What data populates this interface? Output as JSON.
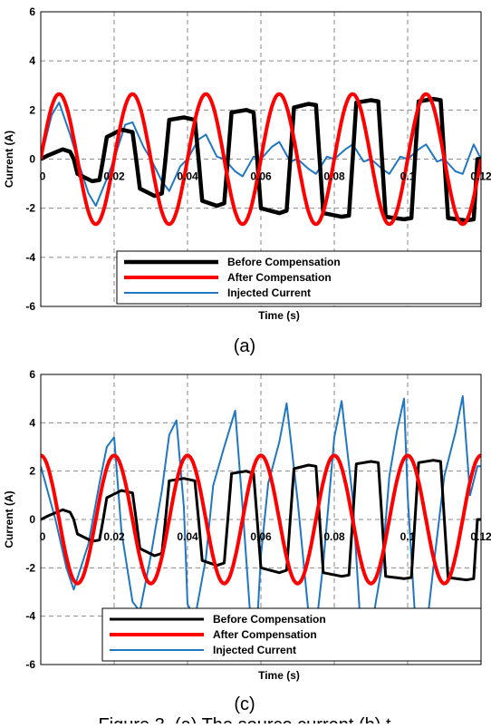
{
  "caption": "Figure 3. (a) The source current (b) t",
  "charts": [
    {
      "sublabel": "(a)",
      "xlabel": "Time (s)",
      "ylabel": "Current (A)"
    },
    {
      "sublabel": "(c)",
      "xlabel": "Time (s)",
      "ylabel": "Current (A)"
    }
  ],
  "chart_data": [
    {
      "type": "line",
      "xlabel": "Time (s)",
      "ylabel": "Current (A)",
      "xlim": [
        0,
        0.12
      ],
      "ylim": [
        -6,
        6
      ],
      "xticks": [
        0,
        0.02,
        0.04,
        0.06,
        0.08,
        0.1,
        0.12
      ],
      "xtick_labels": [
        "0",
        "0.02",
        "0.04",
        "0.06",
        "0.08",
        "0.1",
        "0.12"
      ],
      "yticks": [
        -6,
        -4,
        -2,
        0,
        2,
        4,
        6
      ],
      "ytick_labels": [
        "-6",
        "-4",
        "-2",
        "0",
        "2",
        "4",
        "6"
      ],
      "grid": true,
      "legend_position": "bottom-right",
      "series": [
        {
          "name": "Before Compensation",
          "color": "#000000",
          "x": [
            0,
            0.002,
            0.006,
            0.008,
            0.009,
            0.01,
            0.014,
            0.016,
            0.017,
            0.018,
            0.022,
            0.025,
            0.026,
            0.027,
            0.031,
            0.033,
            0.034,
            0.035,
            0.039,
            0.042,
            0.043,
            0.044,
            0.048,
            0.05,
            0.051,
            0.052,
            0.056,
            0.058,
            0.059,
            0.06,
            0.065,
            0.067,
            0.068,
            0.069,
            0.073,
            0.075,
            0.076,
            0.077,
            0.082,
            0.084,
            0.085,
            0.086,
            0.09,
            0.092,
            0.093,
            0.094,
            0.099,
            0.101,
            0.102,
            0.103,
            0.107,
            0.109,
            0.11,
            0.111,
            0.116,
            0.118,
            0.119,
            0.12
          ],
          "y": [
            0,
            0.15,
            0.4,
            0.3,
            0,
            -0.6,
            -0.9,
            -0.85,
            0,
            0.9,
            1.2,
            1.1,
            0,
            -1.2,
            -1.5,
            -1.4,
            0,
            1.6,
            1.7,
            1.6,
            0,
            -1.7,
            -1.9,
            -1.8,
            0,
            1.9,
            2.0,
            1.9,
            0,
            -2.0,
            -2.2,
            -2.1,
            0,
            2.1,
            2.25,
            2.2,
            0,
            -2.2,
            -2.35,
            -2.3,
            0,
            2.3,
            2.4,
            2.35,
            0,
            -2.35,
            -2.45,
            -2.4,
            0,
            2.35,
            2.45,
            2.4,
            0,
            -2.4,
            -2.5,
            -2.45,
            0,
            0
          ]
        },
        {
          "name": "After Compensation",
          "color": "#ff0000",
          "amplitude": 2.65,
          "frequency_hz": 50,
          "phase": 0
        },
        {
          "name": "Injected Current",
          "color": "#1f77c4",
          "x": [
            0,
            0.003,
            0.005,
            0.008,
            0.01,
            0.013,
            0.015,
            0.018,
            0.02,
            0.023,
            0.025,
            0.028,
            0.03,
            0.033,
            0.035,
            0.038,
            0.04,
            0.043,
            0.045,
            0.048,
            0.05,
            0.053,
            0.055,
            0.058,
            0.06,
            0.063,
            0.065,
            0.068,
            0.07,
            0.073,
            0.075,
            0.078,
            0.08,
            0.083,
            0.085,
            0.088,
            0.09,
            0.093,
            0.095,
            0.098,
            0.1,
            0.103,
            0.105,
            0.108,
            0.11,
            0.113,
            0.115,
            0.118,
            0.12
          ],
          "y": [
            0,
            1.8,
            2.3,
            1.0,
            0,
            -1.4,
            -1.9,
            -0.8,
            0,
            1.4,
            1.5,
            0.5,
            0,
            -0.9,
            -1.3,
            -0.3,
            0,
            0.8,
            1.0,
            0.1,
            0,
            -0.5,
            -0.7,
            0.1,
            0,
            0.5,
            0.7,
            -0.1,
            0,
            -0.4,
            -0.6,
            0.1,
            0,
            0.4,
            0.6,
            -0.1,
            0,
            -0.4,
            -0.6,
            0.1,
            0,
            0.4,
            0.6,
            -0.1,
            0,
            -0.5,
            -0.6,
            0.6,
            0
          ]
        }
      ]
    },
    {
      "type": "line",
      "xlabel": "Time (s)",
      "ylabel": "Current (A)",
      "xlim": [
        0,
        0.12
      ],
      "ylim": [
        -6,
        6
      ],
      "xticks": [
        0,
        0.02,
        0.04,
        0.06,
        0.08,
        0.1,
        0.12
      ],
      "xtick_labels": [
        "0",
        "0.02",
        "0.04",
        "0.06",
        "0.08",
        "0.1",
        "0.12"
      ],
      "yticks": [
        -6,
        -4,
        -2,
        0,
        2,
        4,
        6
      ],
      "ytick_labels": [
        "-6",
        "-4",
        "-2",
        "0",
        "2",
        "4",
        "6"
      ],
      "grid": true,
      "legend_position": "bottom-right",
      "series": [
        {
          "name": "Before Compensation",
          "color": "#000000",
          "x": [
            0,
            0.002,
            0.006,
            0.008,
            0.009,
            0.01,
            0.014,
            0.016,
            0.017,
            0.018,
            0.022,
            0.025,
            0.026,
            0.027,
            0.031,
            0.033,
            0.034,
            0.035,
            0.039,
            0.042,
            0.043,
            0.044,
            0.048,
            0.05,
            0.051,
            0.052,
            0.056,
            0.058,
            0.059,
            0.06,
            0.065,
            0.067,
            0.068,
            0.069,
            0.073,
            0.075,
            0.076,
            0.077,
            0.082,
            0.084,
            0.085,
            0.086,
            0.09,
            0.092,
            0.093,
            0.094,
            0.099,
            0.101,
            0.102,
            0.103,
            0.107,
            0.109,
            0.11,
            0.111,
            0.116,
            0.118,
            0.119,
            0.12
          ],
          "y": [
            0,
            0.15,
            0.4,
            0.3,
            0,
            -0.6,
            -0.9,
            -0.85,
            0,
            0.9,
            1.2,
            1.1,
            0,
            -1.2,
            -1.5,
            -1.4,
            0,
            1.6,
            1.7,
            1.6,
            0,
            -1.7,
            -1.9,
            -1.8,
            0,
            1.9,
            2.0,
            1.9,
            0,
            -2.0,
            -2.2,
            -2.1,
            0,
            2.1,
            2.25,
            2.2,
            0,
            -2.2,
            -2.35,
            -2.3,
            0,
            2.3,
            2.4,
            2.35,
            0,
            -2.35,
            -2.45,
            -2.4,
            0,
            2.35,
            2.45,
            2.4,
            0,
            -2.4,
            -2.5,
            -2.45,
            0,
            0
          ]
        },
        {
          "name": "After Compensation",
          "color": "#ff0000",
          "amplitude": 2.65,
          "frequency_hz": 50,
          "phase": 1.57
        },
        {
          "name": "Injected Current",
          "color": "#1f77c4",
          "x": [
            0,
            0.004,
            0.007,
            0.009,
            0.013,
            0.016,
            0.018,
            0.02,
            0.022,
            0.025,
            0.027,
            0.03,
            0.033,
            0.035,
            0.037,
            0.039,
            0.04,
            0.042,
            0.045,
            0.047,
            0.05,
            0.053,
            0.055,
            0.057,
            0.059,
            0.06,
            0.062,
            0.065,
            0.067,
            0.07,
            0.073,
            0.075,
            0.077,
            0.079,
            0.08,
            0.082,
            0.085,
            0.087,
            0.09,
            0.093,
            0.095,
            0.097,
            0.099,
            0.1,
            0.102,
            0.105,
            0.107,
            0.11,
            0.113,
            0.115,
            0.117,
            0.119,
            0.12
          ],
          "y": [
            2.2,
            0,
            -2.0,
            -2.9,
            -1.0,
            1.5,
            3.0,
            3.4,
            -0.5,
            -3.4,
            -3.8,
            -1.5,
            1.2,
            3.5,
            4.1,
            0.5,
            -3.5,
            -4.1,
            -1.6,
            1.4,
            3.0,
            4.5,
            0.5,
            -3.8,
            -4.3,
            -1.5,
            1.5,
            3.2,
            4.8,
            0.8,
            -3.9,
            -4.5,
            -1.8,
            1.6,
            3.4,
            4.9,
            0.9,
            -4.0,
            -4.6,
            -1.9,
            1.8,
            3.6,
            5.0,
            1.0,
            -4.0,
            -4.7,
            -2.0,
            1.8,
            3.6,
            5.1,
            1.0,
            2.2,
            2.2
          ]
        }
      ]
    }
  ]
}
